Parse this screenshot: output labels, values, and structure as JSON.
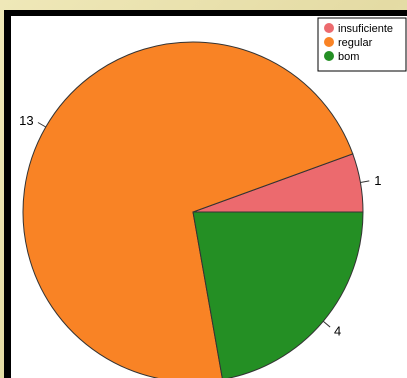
{
  "chart_data": {
    "type": "pie",
    "title": "",
    "categories": [
      "insuficiente",
      "regular",
      "bom"
    ],
    "values": [
      1,
      13,
      4
    ],
    "slice_labels": [
      "1",
      "13",
      "4"
    ],
    "colors": [
      "#ec6a6e",
      "#f98325",
      "#248f24"
    ],
    "legend": {
      "placement": "top-right",
      "entries": [
        "insuficiente",
        "regular",
        "bom"
      ]
    }
  }
}
